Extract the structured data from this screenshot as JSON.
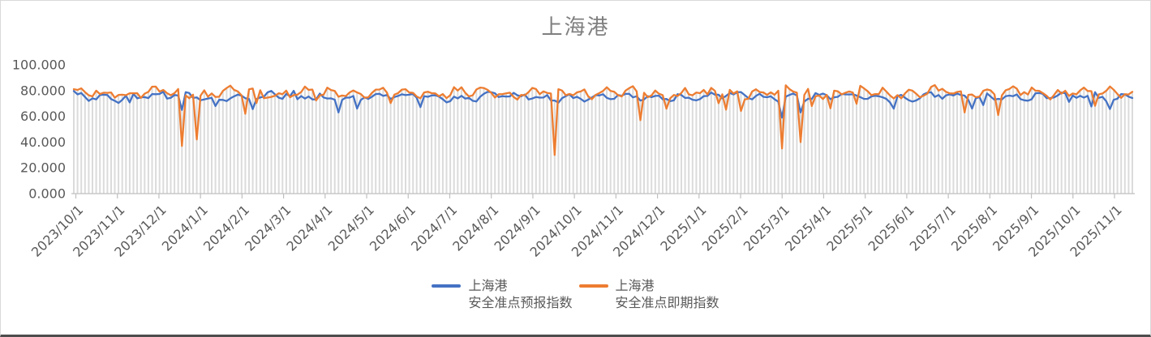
{
  "chart_data": {
    "type": "line",
    "title": "上海港",
    "x_axis": {
      "tick_labels": [
        "2023/10/1",
        "2023/11/1",
        "2023/12/1",
        "2024/1/1",
        "2024/2/1",
        "2024/3/1",
        "2024/4/1",
        "2024/5/1",
        "2024/6/1",
        "2024/7/1",
        "2024/8/1",
        "2024/9/1",
        "2024/10/1",
        "2024/11/1",
        "2024/12/1",
        "2025/1/1",
        "2025/2/1",
        "2025/3/1",
        "2025/4/1",
        "2025/5/1",
        "2025/6/1",
        "2025/7/1",
        "2025/8/1",
        "2025/9/1",
        "2025/10/1",
        "2025/11/1"
      ],
      "label_rotation_deg": -45
    },
    "y_axis": {
      "tick_labels": [
        "0.000",
        "20.000",
        "40.000",
        "60.000",
        "80.000",
        "100.000"
      ],
      "min": 0,
      "max": 100,
      "step": 20
    },
    "series": [
      {
        "name_line1": "上海港",
        "name_line2": "安全准点预报指数",
        "color": "#4472C4",
        "approx_baseline": 75,
        "approx_range": [
          59,
          83
        ]
      },
      {
        "name_line1": "上海港",
        "name_line2": "安全准点即期指数",
        "color": "#ED7D31",
        "approx_baseline": 78,
        "approx_range": [
          30,
          87
        ]
      }
    ],
    "notable_dips": [
      {
        "series": "安全准点即期指数",
        "approx_date": "2023/12/17",
        "approx_value": 37
      },
      {
        "series": "安全准点即期指数",
        "approx_date": "2023/12/29",
        "approx_value": 42
      },
      {
        "series": "安全准点即期指数",
        "approx_date": "2024/9/12",
        "approx_value": 30
      },
      {
        "series": "安全准点即期指数",
        "approx_date": "2025/2/22",
        "approx_value": 35
      },
      {
        "series": "安全准点即期指数",
        "approx_date": "2025/3/7",
        "approx_value": 40
      },
      {
        "series": "安全准点预报指数",
        "approx_date": "2025/2/22",
        "approx_value": 59
      },
      {
        "series": "安全准点预报指数",
        "approx_date": "2025/3/7",
        "approx_value": 63
      }
    ],
    "droplines": {
      "visible": true,
      "color": "#DBDBDB"
    },
    "colors": {
      "title": "#7F7F7F",
      "axis_line": "#BFBFBF",
      "tick_mark": "#BFBFBF",
      "axis_labels": "#595959",
      "frame_border": "#D9D9D9",
      "frame_bottom": "#4D4D4D",
      "background": "#FFFFFF"
    },
    "grid": {
      "horizontal": false,
      "vertical_droplines": true
    },
    "legend_position": "bottom-center",
    "render_params": {
      "seed": 20231001,
      "points": 285,
      "series_params": [
        {
          "base": 75.3,
          "wave1": [
            2.0,
            0.85,
            1.2
          ],
          "wave2": [
            1.3,
            0.21,
            2.4
          ],
          "noise": 2.0,
          "dip_prob": 0.035,
          "dip_depth": [
            3,
            7
          ],
          "max": 83.5,
          "min": 63
        },
        {
          "base": 78.4,
          "wave1": [
            2.3,
            0.93,
            0.3
          ],
          "wave2": [
            1.5,
            0.3,
            1.1
          ],
          "noise": 2.3,
          "dip_prob": 0.05,
          "dip_depth": [
            4,
            10
          ],
          "max": 86.5,
          "min": 61
        }
      ],
      "events": [
        {
          "series": 1,
          "frac": 0.1011,
          "value": 37
        },
        {
          "series": 1,
          "frac": 0.1171,
          "value": 42
        },
        {
          "series": 1,
          "frac": 0.4533,
          "value": 30
        },
        {
          "series": 1,
          "frac": 0.6699,
          "value": 35
        },
        {
          "series": 1,
          "frac": 0.6868,
          "value": 40
        },
        {
          "series": 1,
          "frac": 0.1608,
          "value": 62
        },
        {
          "series": 1,
          "frac": 0.536,
          "value": 57
        },
        {
          "series": 1,
          "frac": 0.842,
          "value": 63
        },
        {
          "series": 1,
          "frac": 0.873,
          "value": 61
        },
        {
          "series": 0,
          "frac": 0.1011,
          "value": 65
        },
        {
          "series": 0,
          "frac": 0.268,
          "value": 66
        },
        {
          "series": 0,
          "frac": 0.6699,
          "value": 59
        },
        {
          "series": 0,
          "frac": 0.6868,
          "value": 63
        },
        {
          "series": 0,
          "frac": 0.85,
          "value": 66
        }
      ]
    }
  }
}
